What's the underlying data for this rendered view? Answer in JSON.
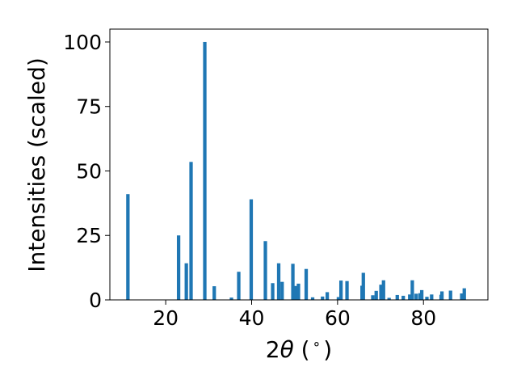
{
  "chart_data": {
    "type": "bar",
    "title": "",
    "xlabel": "2θ (°)",
    "xlabel_parts": {
      "prefix": "2",
      "symbol": "θ",
      "suffix_open": " (",
      "degree": "∘",
      "suffix_close": ")"
    },
    "ylabel": "Intensities (scaled)",
    "xlim": [
      7,
      95
    ],
    "ylim": [
      0,
      105
    ],
    "xticks": [
      20,
      40,
      60,
      80
    ],
    "yticks": [
      0,
      25,
      50,
      75,
      100
    ],
    "grid": false,
    "legend": "none",
    "bar_color": "#1f77b4",
    "bar_width": 0.8,
    "series": [
      {
        "x": [
          11.2,
          23.0,
          24.8,
          25.9,
          29.1,
          31.3,
          35.3,
          37.0,
          39.9,
          43.2,
          44.9,
          46.3,
          47.1,
          49.6,
          50.2,
          50.9,
          52.7,
          54.2,
          56.5,
          57.6,
          60.2,
          60.8,
          62.2,
          65.7,
          66.0,
          68.2,
          69.0,
          70.1,
          70.7,
          72.0,
          73.9,
          75.3,
          76.8,
          77.4,
          78.3,
          79.2,
          79.6,
          80.8,
          81.9,
          84.1,
          84.3,
          86.3,
          88.9,
          89.5
        ],
        "values": [
          41.0,
          25.0,
          14.2,
          53.5,
          100.0,
          5.3,
          0.9,
          10.9,
          39.0,
          22.8,
          6.5,
          14.2,
          7.0,
          14.0,
          5.4,
          6.3,
          12.0,
          1.0,
          1.3,
          3.0,
          1.1,
          7.5,
          7.3,
          5.5,
          10.5,
          1.8,
          3.5,
          5.9,
          7.6,
          0.8,
          1.9,
          1.6,
          2.1,
          7.6,
          2.4,
          2.6,
          3.8,
          1.2,
          2.1,
          2.0,
          3.3,
          3.6,
          2.5,
          4.5
        ]
      }
    ]
  }
}
